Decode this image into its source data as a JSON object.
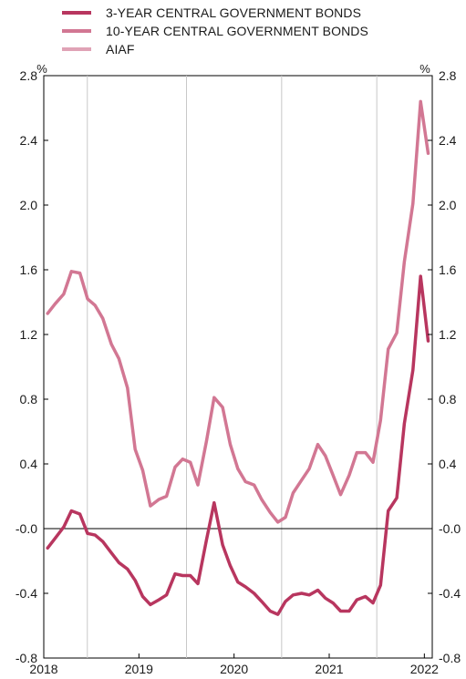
{
  "chart_data": {
    "type": "line",
    "unit_left": "%",
    "unit_right": "%",
    "ylim": [
      -0.8,
      2.8
    ],
    "yticks": [
      -0.8,
      -0.4,
      0.0,
      0.4,
      0.8,
      1.2,
      1.6,
      2.0,
      2.4,
      2.8
    ],
    "ytick_labels": [
      "-0.8",
      "-0.4",
      "-0.0",
      "0.4",
      "0.8",
      "1.2",
      "1.6",
      "2.0",
      "2.4",
      "2.8"
    ],
    "xlim": [
      2018.0,
      2022.083
    ],
    "xticks": [
      {
        "label": "2018",
        "value": 2018.0
      },
      {
        "label": "2019",
        "value": 2019.0
      },
      {
        "label": "2020",
        "value": 2020.0
      },
      {
        "label": "2021",
        "value": 2021.0
      },
      {
        "label": "2022",
        "value": 2022.0
      }
    ],
    "year_separators": [
      2018.458,
      2019.5,
      2020.5,
      2021.5
    ],
    "series": [
      {
        "name": "3-YEAR CENTRAL GOVERNMENT BONDS",
        "color": "#b8365f",
        "x": [
          2018.04,
          2018.12,
          2018.21,
          2018.29,
          2018.38,
          2018.46,
          2018.54,
          2018.62,
          2018.71,
          2018.79,
          2018.88,
          2018.96,
          2019.04,
          2019.12,
          2019.21,
          2019.29,
          2019.38,
          2019.46,
          2019.54,
          2019.62,
          2019.71,
          2019.79,
          2019.88,
          2019.96,
          2020.04,
          2020.12,
          2020.21,
          2020.29,
          2020.38,
          2020.46,
          2020.54,
          2020.62,
          2020.71,
          2020.79,
          2020.88,
          2020.96,
          2021.04,
          2021.12,
          2021.21,
          2021.29,
          2021.38,
          2021.46,
          2021.54,
          2021.62,
          2021.71,
          2021.79,
          2021.88,
          2021.96,
          2022.04
        ],
        "values": [
          -0.12,
          -0.06,
          0.01,
          0.11,
          0.09,
          -0.03,
          -0.04,
          -0.08,
          -0.15,
          -0.21,
          -0.25,
          -0.32,
          -0.42,
          -0.47,
          -0.44,
          -0.41,
          -0.28,
          -0.29,
          -0.29,
          -0.34,
          -0.07,
          0.16,
          -0.1,
          -0.23,
          -0.33,
          -0.36,
          -0.4,
          -0.45,
          -0.51,
          -0.53,
          -0.45,
          -0.41,
          -0.4,
          -0.41,
          -0.38,
          -0.43,
          -0.46,
          -0.51,
          -0.51,
          -0.44,
          -0.42,
          -0.46,
          -0.35,
          0.11,
          0.19,
          0.65,
          0.98,
          1.56,
          1.16
        ]
      },
      {
        "name": "10-YEAR CENTRAL GOVERNMENT BONDS",
        "color": "#d27793",
        "x": [
          2018.04,
          2018.12,
          2018.21,
          2018.29,
          2018.38,
          2018.46,
          2018.54,
          2018.62,
          2018.71,
          2018.79,
          2018.88,
          2018.96,
          2019.04,
          2019.12,
          2019.21,
          2019.29,
          2019.38,
          2019.46,
          2019.54,
          2019.62,
          2019.71,
          2019.79,
          2019.88,
          2019.96,
          2020.04,
          2020.12,
          2020.21,
          2020.29,
          2020.38,
          2020.46,
          2020.54,
          2020.62,
          2020.71,
          2020.79,
          2020.88,
          2020.96,
          2021.04,
          2021.12,
          2021.21,
          2021.29,
          2021.38,
          2021.46,
          2021.54,
          2021.62,
          2021.71,
          2021.79,
          2021.88,
          2021.96,
          2022.04
        ],
        "values": [
          1.33,
          1.39,
          1.45,
          1.59,
          1.58,
          1.42,
          1.38,
          1.3,
          1.14,
          1.05,
          0.87,
          0.49,
          0.36,
          0.14,
          0.18,
          0.2,
          0.38,
          0.43,
          0.41,
          0.27,
          0.54,
          0.81,
          0.75,
          0.52,
          0.37,
          0.29,
          0.27,
          0.18,
          0.1,
          0.04,
          0.07,
          0.22,
          0.3,
          0.37,
          0.52,
          0.45,
          0.33,
          0.21,
          0.33,
          0.47,
          0.47,
          0.41,
          0.67,
          1.11,
          1.21,
          1.65,
          2.01,
          2.64,
          2.32
        ]
      },
      {
        "name": "AIAF",
        "color": "#e0a3b6",
        "x": [],
        "values": []
      }
    ]
  }
}
